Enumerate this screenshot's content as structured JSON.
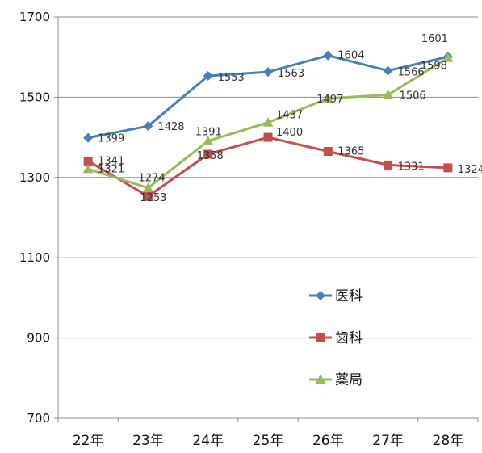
{
  "chart_data": {
    "type": "line",
    "categories": [
      "22年",
      "23年",
      "24年",
      "25年",
      "26年",
      "27年",
      "28年"
    ],
    "ylim": [
      700,
      1700
    ],
    "yticks": [
      700,
      900,
      1100,
      1300,
      1500,
      1700
    ],
    "grid": {
      "horizontal": true,
      "vertical": false
    },
    "legend": "bottom-right",
    "series": [
      {
        "name": "医科",
        "color": "#4a7ebb",
        "marker": "diamond",
        "values": [
          1399,
          1428,
          1553,
          1563,
          1604,
          1566,
          1601
        ],
        "labels": [
          "1399",
          "1428",
          "1553",
          "1563",
          "1604",
          "1566",
          "1601"
        ]
      },
      {
        "name": "歯科",
        "color": "#c0504d",
        "marker": "square",
        "values": [
          1341,
          1253,
          1358,
          1400,
          1365,
          1331,
          1324
        ],
        "labels": [
          "1341",
          "1253",
          "1358",
          "1400",
          "1365",
          "1331",
          "1324"
        ]
      },
      {
        "name": "薬局",
        "color": "#9bbb59",
        "marker": "triangle",
        "values": [
          1321,
          1274,
          1391,
          1437,
          1497,
          1506,
          1598
        ],
        "labels": [
          "1321",
          "1274",
          "1391",
          "1437",
          "1497",
          "1506",
          "1598"
        ]
      }
    ]
  }
}
